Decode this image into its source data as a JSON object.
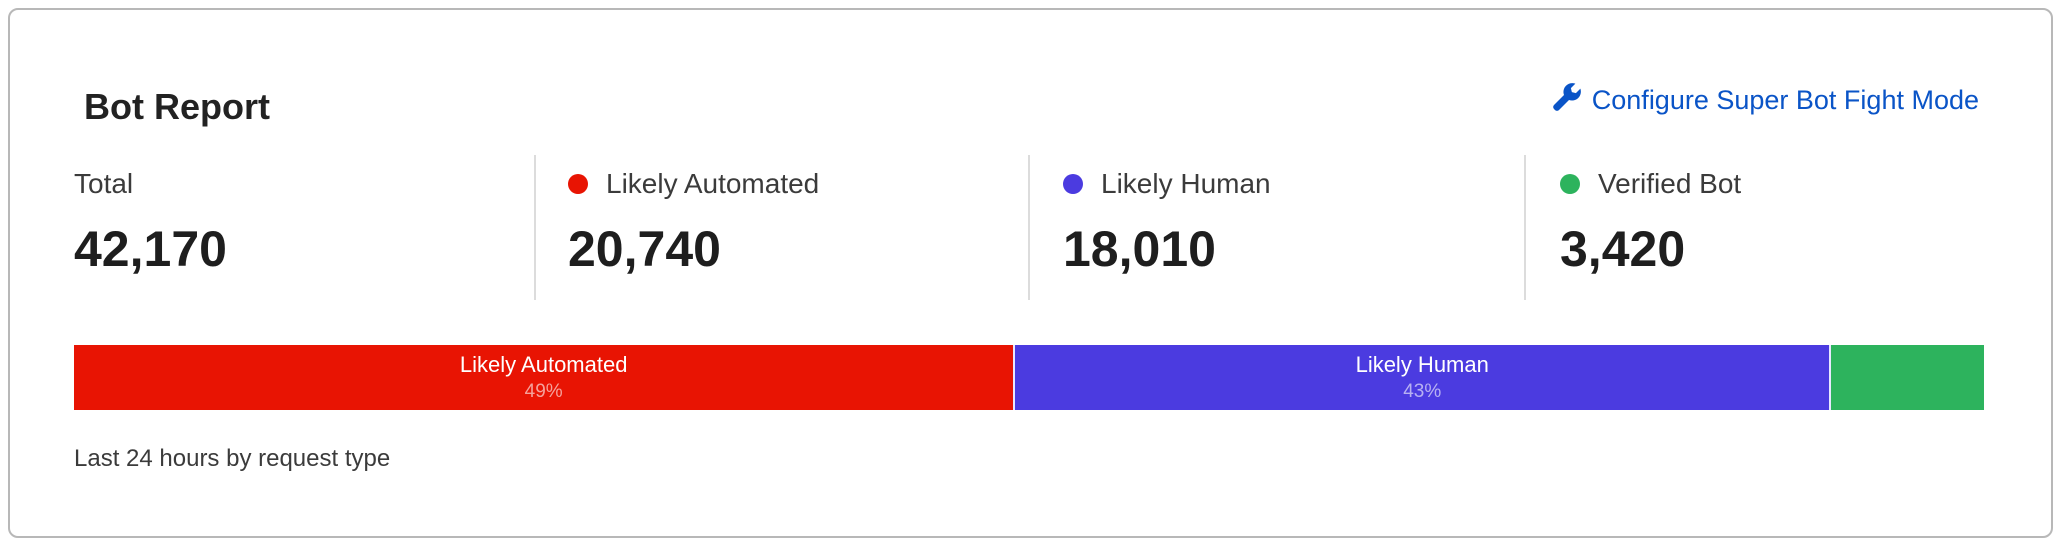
{
  "card": {
    "title": "Bot Report",
    "configure_link": {
      "label": "Configure Super Bot Fight Mode",
      "icon": "wrench-icon"
    },
    "stats": [
      {
        "label": "Total",
        "value": "42,170"
      },
      {
        "label": "Likely Automated",
        "value": "20,740",
        "color": "#e81403"
      },
      {
        "label": "Likely Human",
        "value": "18,010",
        "color": "#4b3be0"
      },
      {
        "label": "Verified Bot",
        "value": "3,420",
        "color": "#2db35d"
      }
    ],
    "footer": "Last 24 hours by request type"
  },
  "chart_data": {
    "type": "bar",
    "orientation": "horizontal-stacked",
    "categories": [
      "Likely Automated",
      "Likely Human",
      "Verified Bot"
    ],
    "values": [
      20740,
      18010,
      3420
    ],
    "percent_labels": [
      "49%",
      "43%",
      ""
    ],
    "colors": [
      "#e81403",
      "#4b3be0",
      "#2db35d"
    ]
  }
}
